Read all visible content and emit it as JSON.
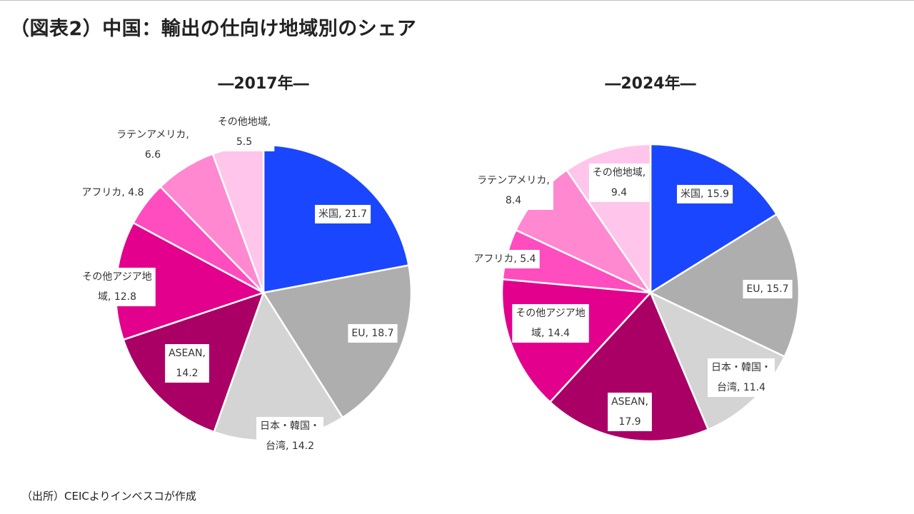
{
  "title": "（図表2）中国：輸出の仕向け地域別のシェア",
  "source": "（出所）CEICよりインベスコが作成",
  "colors": {
    "us": "#1b46ff",
    "eu": "#aeaeae",
    "japan_korea_taiwan": "#d4d4d4",
    "asean": "#aa0066",
    "other_asia": "#e2008c",
    "africa": "#ff4cbe",
    "latin_america": "#ff88d1",
    "other": "#ffc5ea"
  },
  "chart_data": [
    {
      "type": "pie",
      "title": "―2017年―",
      "start_angle_deg": 0,
      "direction": "clockwise",
      "slices": [
        {
          "key": "us",
          "label": "米国",
          "value": 21.7,
          "label_lines": [
            "米国, 21.7"
          ]
        },
        {
          "key": "eu",
          "label": "EU",
          "value": 18.7,
          "label_lines": [
            "EU, 18.7"
          ]
        },
        {
          "key": "japan_korea_taiwan",
          "label": "日本・韓国・台湾",
          "value": 14.2,
          "label_lines": [
            "日本・韓国・",
            "台湾, 14.2"
          ]
        },
        {
          "key": "asean",
          "label": "ASEAN",
          "value": 14.2,
          "label_lines": [
            "ASEAN,",
            "14.2"
          ]
        },
        {
          "key": "other_asia",
          "label": "その他アジア地域",
          "value": 12.8,
          "label_lines": [
            "その他アジア地",
            "域, 12.8"
          ]
        },
        {
          "key": "africa",
          "label": "アフリカ",
          "value": 4.8,
          "label_lines": [
            "アフリカ, 4.8"
          ]
        },
        {
          "key": "latin_america",
          "label": "ラテンアメリカ",
          "value": 6.6,
          "label_lines": [
            "ラテンアメリカ,",
            "6.6"
          ]
        },
        {
          "key": "other",
          "label": "その他地域",
          "value": 5.5,
          "label_lines": [
            "その他地域,",
            "5.5"
          ]
        }
      ]
    },
    {
      "type": "pie",
      "title": "―2024年―",
      "start_angle_deg": 0,
      "direction": "clockwise",
      "slices": [
        {
          "key": "us",
          "label": "米国",
          "value": 15.9,
          "label_lines": [
            "米国, 15.9"
          ]
        },
        {
          "key": "eu",
          "label": "EU",
          "value": 15.7,
          "label_lines": [
            "EU, 15.7"
          ]
        },
        {
          "key": "japan_korea_taiwan",
          "label": "日本・韓国・台湾",
          "value": 11.4,
          "label_lines": [
            "日本・韓国・",
            "台湾, 11.4"
          ]
        },
        {
          "key": "asean",
          "label": "ASEAN",
          "value": 17.9,
          "label_lines": [
            "ASEAN,",
            "17.9"
          ]
        },
        {
          "key": "other_asia",
          "label": "その他アジア地域",
          "value": 14.4,
          "label_lines": [
            "その他アジア地",
            "域, 14.4"
          ]
        },
        {
          "key": "africa",
          "label": "アフリカ",
          "value": 5.4,
          "label_lines": [
            "アフリカ, 5.4"
          ]
        },
        {
          "key": "latin_america",
          "label": "ラテンアメリカ",
          "value": 8.4,
          "label_lines": [
            "ラテンアメリカ,",
            "8.4"
          ]
        },
        {
          "key": "other",
          "label": "その他地域",
          "value": 9.4,
          "label_lines": [
            "その他地域,",
            "9.4"
          ]
        }
      ]
    }
  ]
}
